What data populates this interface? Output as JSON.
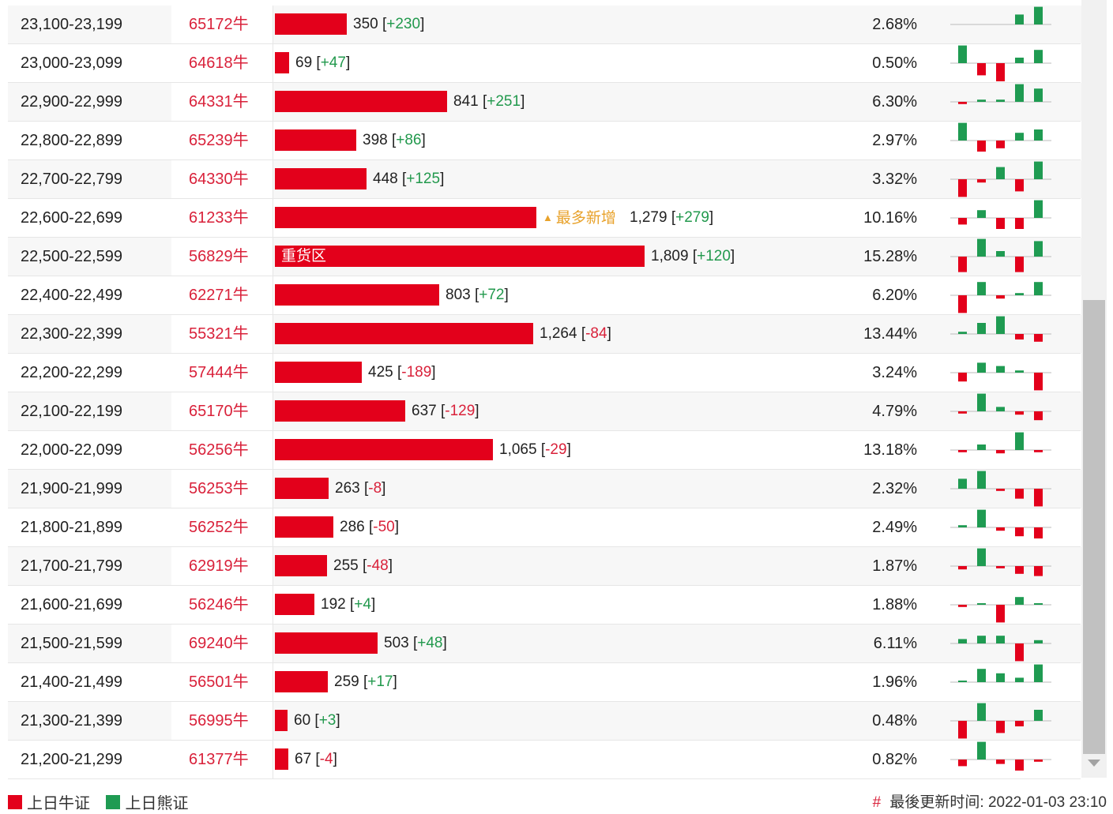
{
  "colors": {
    "bull": "#e3001b",
    "bear": "#1f9b52",
    "range_text": "#d9213a",
    "highlight": "#e8a22b"
  },
  "scale_max": 1809,
  "rows": [
    {
      "range": "23,100-23,199",
      "code": "65172牛",
      "count": "350",
      "change": "+230",
      "count_value": 350,
      "pct": "2.68%",
      "spark": [
        0,
        0,
        0,
        0,
        0.9,
        1.6
      ]
    },
    {
      "range": "23,000-23,099",
      "code": "64618牛",
      "count": "69",
      "change": "+47",
      "count_value": 69,
      "pct": "0.50%",
      "spark": [
        1.6,
        -1.1,
        -1.7,
        0.5,
        1.2
      ]
    },
    {
      "range": "22,900-22,999",
      "code": "64331牛",
      "count": "841",
      "change": "+251",
      "count_value": 841,
      "pct": "6.30%",
      "spark": [
        -0.2,
        0.2,
        0.2,
        1.6,
        1.2
      ]
    },
    {
      "range": "22,800-22,899",
      "code": "65239牛",
      "count": "398",
      "change": "+86",
      "count_value": 398,
      "pct": "2.97%",
      "spark": [
        1.6,
        -1.0,
        -0.7,
        0.7,
        1.0
      ]
    },
    {
      "range": "22,700-22,799",
      "code": "64330牛",
      "count": "448",
      "change": "+125",
      "count_value": 448,
      "pct": "3.32%",
      "spark": [
        -1.6,
        -0.3,
        1.1,
        -1.1,
        1.6
      ]
    },
    {
      "range": "22,600-22,699",
      "code": "61233牛",
      "count": "1,279",
      "change": "+279",
      "count_value": 1279,
      "pct": "10.16%",
      "badge": "最多新增",
      "spark": [
        -0.6,
        0.7,
        -1.0,
        -1.0,
        1.6
      ]
    },
    {
      "range": "22,500-22,599",
      "code": "56829牛",
      "count": "1,809",
      "change": "+120",
      "count_value": 1809,
      "pct": "15.28%",
      "bar_label": "重货区",
      "spark": [
        -1.4,
        1.6,
        0.5,
        -1.4,
        1.4
      ]
    },
    {
      "range": "22,400-22,499",
      "code": "62271牛",
      "count": "803",
      "change": "+72",
      "count_value": 803,
      "pct": "6.20%",
      "spark": [
        -1.6,
        1.2,
        -0.3,
        0.2,
        1.2
      ]
    },
    {
      "range": "22,300-22,399",
      "code": "55321牛",
      "count": "1,264",
      "change": "-84",
      "count_value": 1264,
      "pct": "13.44%",
      "spark": [
        0.2,
        1.0,
        1.6,
        -0.5,
        -0.7
      ]
    },
    {
      "range": "22,200-22,299",
      "code": "57444牛",
      "count": "425",
      "change": "-189",
      "count_value": 425,
      "pct": "3.24%",
      "spark": [
        -0.8,
        0.9,
        0.6,
        0.2,
        -1.6
      ]
    },
    {
      "range": "22,100-22,199",
      "code": "65170牛",
      "count": "637",
      "change": "-129",
      "count_value": 637,
      "pct": "4.79%",
      "spark": [
        -0.2,
        1.6,
        0.4,
        -0.3,
        -0.8
      ]
    },
    {
      "range": "22,000-22,099",
      "code": "56256牛",
      "count": "1,065",
      "change": "-29",
      "count_value": 1065,
      "pct": "13.18%",
      "spark": [
        -0.2,
        0.5,
        -0.3,
        1.6,
        -0.2
      ]
    },
    {
      "range": "21,900-21,999",
      "code": "56253牛",
      "count": "263",
      "change": "-8",
      "count_value": 263,
      "pct": "2.32%",
      "spark": [
        0.9,
        1.6,
        -0.2,
        -0.9,
        -1.6
      ]
    },
    {
      "range": "21,800-21,899",
      "code": "56252牛",
      "count": "286",
      "change": "-50",
      "count_value": 286,
      "pct": "2.49%",
      "spark": [
        0.2,
        1.6,
        -0.3,
        -0.8,
        -1.0
      ]
    },
    {
      "range": "21,700-21,799",
      "code": "62919牛",
      "count": "255",
      "change": "-48",
      "count_value": 255,
      "pct": "1.87%",
      "spark": [
        -0.3,
        1.6,
        -0.2,
        -0.7,
        -0.9
      ]
    },
    {
      "range": "21,600-21,699",
      "code": "56246牛",
      "count": "192",
      "change": "+4",
      "count_value": 192,
      "pct": "1.88%",
      "spark": [
        -0.2,
        0.1,
        -1.6,
        0.7,
        0.1
      ]
    },
    {
      "range": "21,500-21,599",
      "code": "69240牛",
      "count": "503",
      "change": "+48",
      "count_value": 503,
      "pct": "6.11%",
      "spark": [
        0.4,
        0.7,
        0.7,
        -1.6,
        0.3
      ]
    },
    {
      "range": "21,400-21,499",
      "code": "56501牛",
      "count": "259",
      "change": "+17",
      "count_value": 259,
      "pct": "1.96%",
      "spark": [
        0.1,
        1.2,
        0.8,
        0.4,
        1.6
      ]
    },
    {
      "range": "21,300-21,399",
      "code": "56995牛",
      "count": "60",
      "change": "+3",
      "count_value": 60,
      "pct": "0.48%",
      "spark": [
        -1.6,
        1.6,
        -1.1,
        -0.5,
        1.0
      ]
    },
    {
      "range": "21,200-21,299",
      "code": "61377牛",
      "count": "67",
      "change": "-4",
      "count_value": 67,
      "pct": "0.82%",
      "spark": [
        -0.6,
        1.6,
        -0.4,
        -1.0,
        -0.2
      ]
    }
  ],
  "legend": {
    "bull_label": "上日牛证",
    "bear_label": "上日熊证"
  },
  "footer": {
    "hash": "#",
    "updated_label": "最後更新时间: 2022-01-03 23:10"
  }
}
